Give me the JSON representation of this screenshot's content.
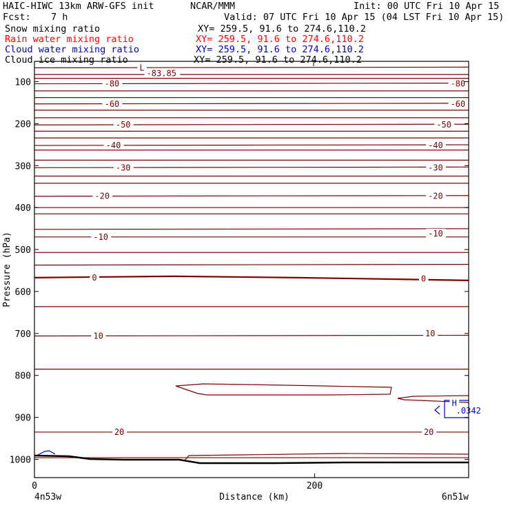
{
  "header": {
    "model": "HAIC-HIWC 13km ARW-GFS init",
    "org": "NCAR/MMM",
    "init": "Init: 00 UTC Fri 10 Apr 15",
    "fcst_label": "Fcst:",
    "fcst_value": "7 h",
    "valid": "Valid: 07 UTC Fri 10 Apr 15 (04 LST Fri 10 Apr 15)",
    "fields": [
      {
        "name": "Snow mixing ratio",
        "xy": "XY= 259.5, 91.6 to 274.6,110.2",
        "color": "#000000"
      },
      {
        "name": "Rain water mixing ratio",
        "xy": "XY= 259.5, 91.6 to 274.6,110.2",
        "color": "#ff0000"
      },
      {
        "name": "Cloud water mixing ratio",
        "xy": "XY= 259.5, 91.6 to 274.6,110.2",
        "color": "#0000cc"
      },
      {
        "name": "Cloud ice mixing ratio",
        "xy": "XY= 259.5, 91.6 to 274.6,110.2",
        "color": "#000000"
      }
    ]
  },
  "chart_data": {
    "type": "contour",
    "xlabel": "Distance (km)",
    "ylabel": "Pressure (hPa)",
    "x_range": [
      0,
      310
    ],
    "y_range": [
      1050,
      60
    ],
    "x_ticks": [
      0,
      200
    ],
    "y_ticks": [
      100,
      200,
      300,
      400,
      500,
      600,
      700,
      800,
      900,
      1000
    ],
    "x_endpoint_labels": [
      "4n53w",
      "6n51w"
    ],
    "contour_color": "#7a0000",
    "contour_pressures": [
      67,
      83,
      92,
      105,
      122,
      138,
      153,
      168,
      186,
      203,
      218,
      234,
      252,
      263,
      287,
      305,
      325,
      342,
      373,
      400,
      415,
      452,
      470,
      507,
      537,
      567,
      636,
      706,
      785,
      935,
      996
    ],
    "contour_labels": [
      {
        "text": "-80",
        "x": 50,
        "p": 105,
        "color": "#7a0000"
      },
      {
        "text": "-80",
        "x": 297,
        "p": 105,
        "color": "#7a0000"
      },
      {
        "text": "-60",
        "x": 50,
        "p": 153,
        "color": "#7a0000"
      },
      {
        "text": "-60",
        "x": 297,
        "p": 153,
        "color": "#7a0000"
      },
      {
        "text": "-50",
        "x": 58,
        "p": 203,
        "color": "#7a0000"
      },
      {
        "text": "-50",
        "x": 287,
        "p": 203,
        "color": "#7a0000"
      },
      {
        "text": "-40",
        "x": 51,
        "p": 252,
        "color": "#7a0000"
      },
      {
        "text": "-40",
        "x": 281,
        "p": 252,
        "color": "#7a0000"
      },
      {
        "text": "-30",
        "x": 58,
        "p": 305,
        "color": "#7a0000"
      },
      {
        "text": "-30",
        "x": 281,
        "p": 305,
        "color": "#7a0000"
      },
      {
        "text": "-20",
        "x": 43,
        "p": 373,
        "color": "#7a0000"
      },
      {
        "text": "-20",
        "x": 281,
        "p": 373,
        "color": "#7a0000"
      },
      {
        "text": "-10",
        "x": 42,
        "p": 470,
        "color": "#7a0000"
      },
      {
        "text": "-10",
        "x": 281,
        "p": 462,
        "color": "#7a0000"
      },
      {
        "text": "0",
        "x": 41,
        "p": 567,
        "color": "#7a0000"
      },
      {
        "text": "0",
        "x": 276,
        "p": 570,
        "color": "#7a0000"
      },
      {
        "text": "10",
        "x": 42,
        "p": 706,
        "color": "#7a0000"
      },
      {
        "text": "10",
        "x": 279,
        "p": 700,
        "color": "#7a0000"
      },
      {
        "text": "20",
        "x": 57,
        "p": 935,
        "color": "#7a0000"
      },
      {
        "text": "20",
        "x": 278,
        "p": 935,
        "color": "#7a0000"
      },
      {
        "text": "-83.85",
        "x": 80,
        "p": 80,
        "color": "#7a0000"
      },
      {
        "text": "L",
        "x": 75,
        "p": 67,
        "color": "#7a0000"
      },
      {
        "text": "H",
        "x": 298,
        "p": 866,
        "color": "#0000cc"
      },
      {
        "text": ".0342",
        "x": 301,
        "p": 884,
        "color": "#0000cc"
      }
    ],
    "grid": false
  }
}
